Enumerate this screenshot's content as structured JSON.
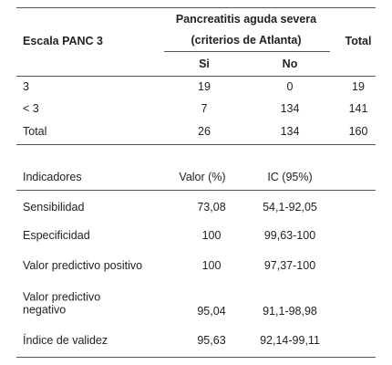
{
  "table1": {
    "header": {
      "scale": "Escala PANC 3",
      "group": "Pancreatitis aguda severa",
      "group_sub": "(criterios de Atlanta)",
      "total": "Total",
      "si": "Si",
      "no": "No"
    },
    "rows": [
      [
        "3",
        "19",
        "0",
        "19"
      ],
      [
        "< 3",
        "7",
        "134",
        "141"
      ],
      [
        "Total",
        "26",
        "134",
        "160"
      ]
    ]
  },
  "table2": {
    "header": [
      "Indicadores",
      "Valor (%)",
      "IC (95%)"
    ],
    "rows": [
      [
        "Sensibilidad",
        "73,08",
        "54,1-92,05"
      ],
      [
        "Especificidad",
        "100",
        "99,63-100"
      ],
      [
        "Valor predictivo positivo",
        "100",
        "97,37-100"
      ],
      [
        "Valor predictivo negativo",
        "95,04",
        "91,1-98,98"
      ],
      [
        "Índice de validez",
        "95,63",
        "92,14-99,11"
      ]
    ]
  }
}
